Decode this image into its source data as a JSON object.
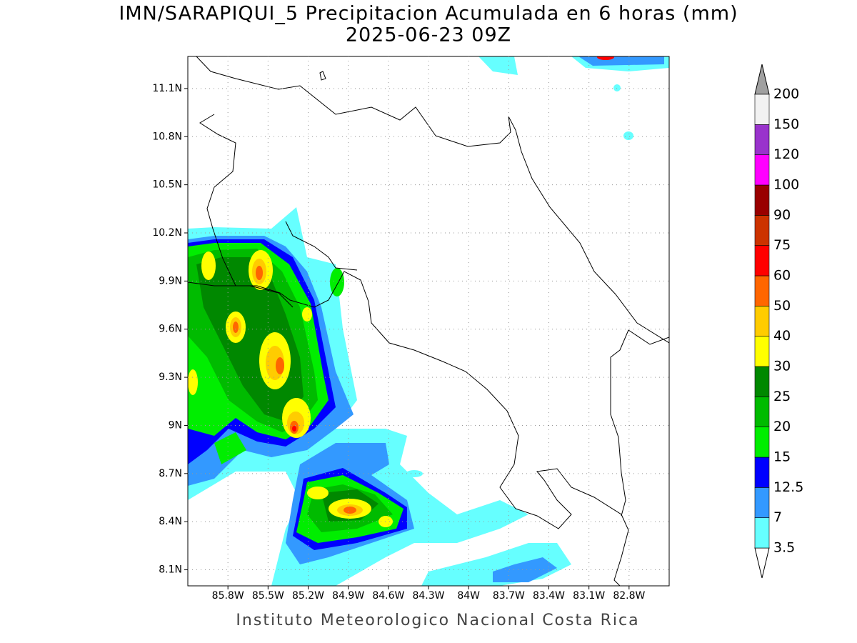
{
  "chart_data": {
    "type": "map",
    "title": "IMN/SARAPIQUI_5 Precipitacion Acumulada en 6 horas (mm)",
    "subtitle": "2025-06-23 09Z",
    "footer": "Instituto Meteorologico Nacional Costa Rica",
    "xlim": [
      -86.1,
      -82.5
    ],
    "ylim": [
      8.0,
      11.3
    ],
    "grid": true,
    "xticks": [
      {
        "value": -85.8,
        "label": "85.8W"
      },
      {
        "value": -85.5,
        "label": "85.5W"
      },
      {
        "value": -85.2,
        "label": "85.2W"
      },
      {
        "value": -84.9,
        "label": "84.9W"
      },
      {
        "value": -84.6,
        "label": "84.6W"
      },
      {
        "value": -84.3,
        "label": "84.3W"
      },
      {
        "value": -84.0,
        "label": "84W"
      },
      {
        "value": -83.7,
        "label": "83.7W"
      },
      {
        "value": -83.4,
        "label": "83.4W"
      },
      {
        "value": -83.1,
        "label": "83.1W"
      },
      {
        "value": -82.8,
        "label": "82.8W"
      }
    ],
    "yticks": [
      {
        "value": 8.1,
        "label": "8.1N"
      },
      {
        "value": 8.4,
        "label": "8.4N"
      },
      {
        "value": 8.7,
        "label": "8.7N"
      },
      {
        "value": 9.0,
        "label": "9N"
      },
      {
        "value": 9.3,
        "label": "9.3N"
      },
      {
        "value": 9.6,
        "label": "9.6N"
      },
      {
        "value": 9.9,
        "label": "9.9N"
      },
      {
        "value": 10.2,
        "label": "10.2N"
      },
      {
        "value": 10.5,
        "label": "10.5N"
      },
      {
        "value": 10.8,
        "label": "10.8N"
      },
      {
        "value": 11.1,
        "label": "11.1N"
      }
    ],
    "legend": {
      "levels": [
        3.5,
        7,
        12.5,
        15,
        20,
        25,
        30,
        40,
        50,
        60,
        75,
        90,
        100,
        120,
        150,
        200
      ],
      "colors": [
        "#66ffff",
        "#3399ff",
        "#0000ff",
        "#00ee00",
        "#00bb00",
        "#008800",
        "#ffff00",
        "#ffcc00",
        "#ff6600",
        "#ff0000",
        "#cc3300",
        "#990000",
        "#ff00ff",
        "#9933cc",
        "#f2f2f2"
      ],
      "under_color": "#ffffff",
      "over_color": "#a0a0a0"
    }
  }
}
